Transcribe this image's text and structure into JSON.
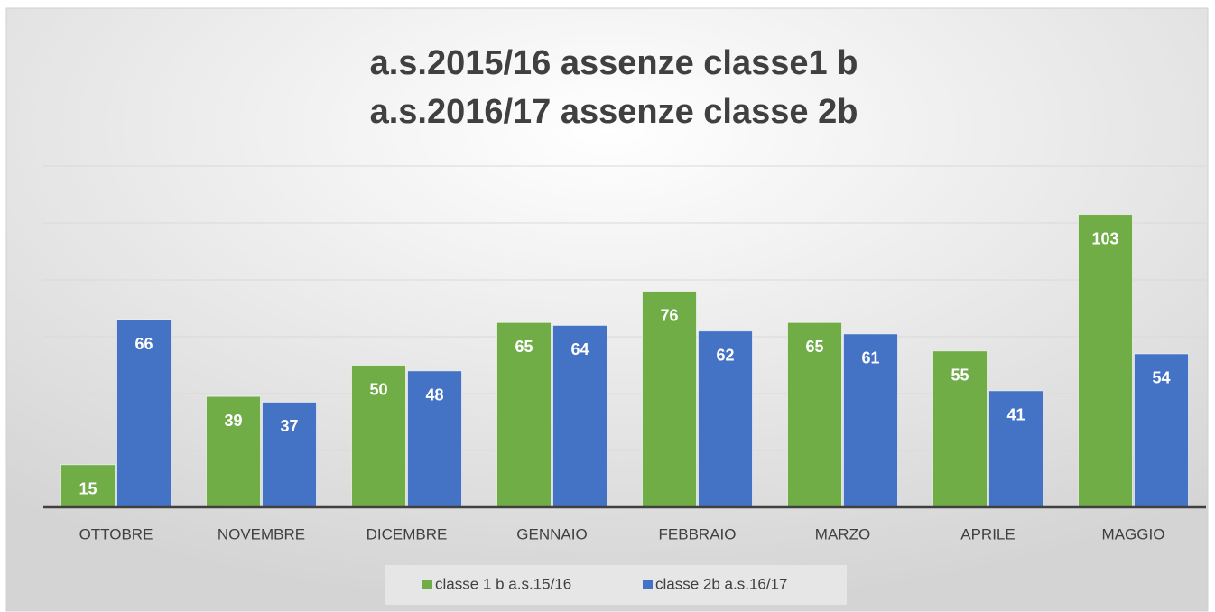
{
  "chart_data": {
    "type": "bar",
    "title": [
      "a.s.2015/16 assenze classe1 b",
      "a.s.2016/17 assenze classe 2b"
    ],
    "categories": [
      "OTTOBRE",
      "NOVEMBRE",
      "DICEMBRE",
      "GENNAIO",
      "FEBBRAIO",
      "MARZO",
      "APRILE",
      "MAGGIO"
    ],
    "series": [
      {
        "name": "classe 1 b a.s.15/16",
        "color": "#70ad47",
        "values": [
          15,
          39,
          50,
          65,
          76,
          65,
          55,
          103
        ]
      },
      {
        "name": "classe 2b a.s.16/17",
        "color": "#4472c4",
        "values": [
          66,
          37,
          48,
          64,
          62,
          61,
          41,
          54
        ]
      }
    ],
    "ylim": [
      0,
      120
    ],
    "yticks": [
      0,
      20,
      40,
      60,
      80,
      100,
      120
    ],
    "grid": true
  }
}
